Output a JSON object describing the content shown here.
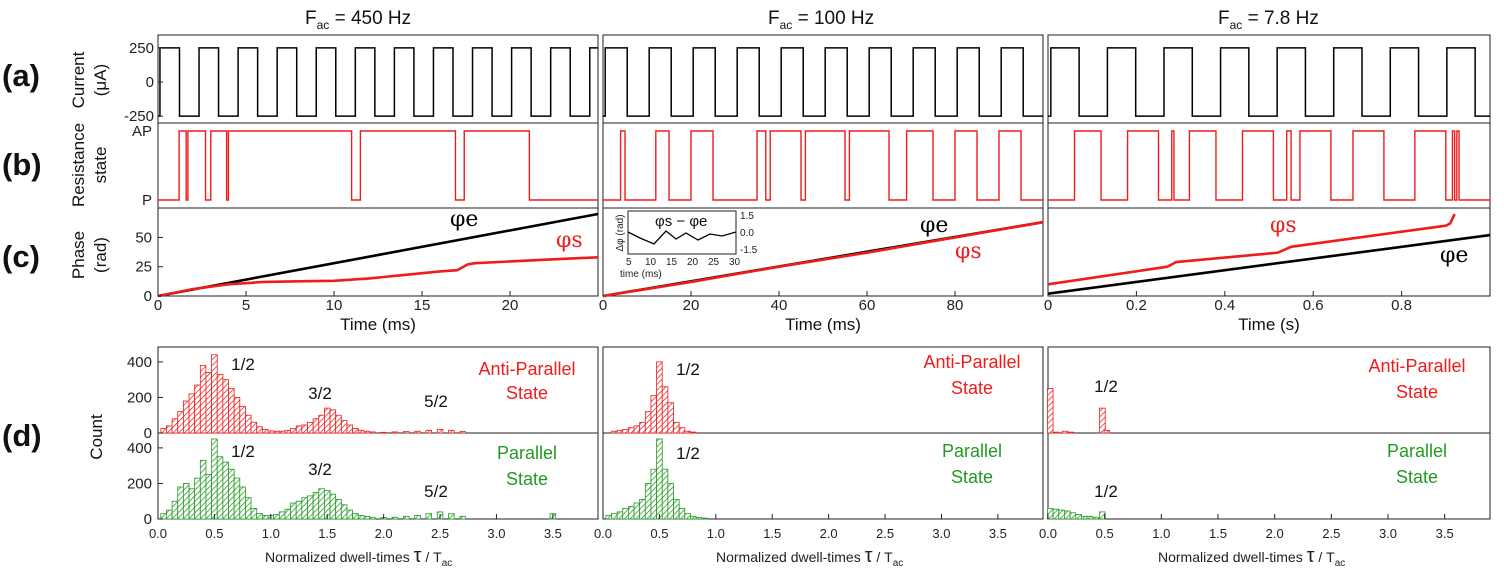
{
  "colors": {
    "current": "#000000",
    "resistance": "#ee1c1c",
    "phase_e": "#000000",
    "phase_s": "#ee1c1c",
    "antiparallel": "#ee1c1c",
    "parallel": "#229922"
  },
  "panel_labels": [
    "(a)",
    "(b)",
    "(c)",
    "(d)"
  ],
  "row_labels": {
    "a": [
      "Current",
      "(μA)"
    ],
    "b": [
      "Resistance",
      "state"
    ],
    "c": [
      "Phase",
      "(rad)"
    ],
    "d": [
      "Count"
    ]
  },
  "columns": [
    {
      "title": "F",
      "title_sub": "ac",
      "title_rest": " = 450 Hz"
    },
    {
      "title": "F",
      "title_sub": "ac",
      "title_rest": " = 100 Hz"
    },
    {
      "title": "F",
      "title_sub": "ac",
      "title_rest": " = 7.8 Hz"
    }
  ],
  "phase_labels": {
    "phi_e": "φe",
    "phi_s": "φs"
  },
  "hist_labels": {
    "ap_line1": "Anti-Parallel",
    "ap_line2": "State",
    "p_line1": "Parallel",
    "p_line2": "State",
    "xlabel_main": "Normalized dwell-times ",
    "xlabel_tau": "τ",
    "xlabel_tail": " / T",
    "xlabel_sub": "ac"
  },
  "inset": {
    "title": "φs − φe",
    "ylabel": "Δφ (rad)",
    "xlabel": "time (ms)",
    "xticks": [
      "5",
      "10",
      "15",
      "20",
      "25",
      "30"
    ],
    "yticks": [
      "1.5",
      "0.0",
      "-1.5"
    ]
  },
  "chart_data": [
    {
      "id": "a-450",
      "type": "line",
      "title": "F_ac = 450 Hz",
      "xlabel": "",
      "ylabel": "Current (μA)",
      "xlim": [
        0,
        25
      ],
      "ylim": [
        -300,
        300
      ],
      "yticks": [
        "250",
        "0",
        "-250"
      ],
      "period": 2.22,
      "amplitude": 250
    },
    {
      "id": "a-100",
      "type": "line",
      "title": "F_ac = 100 Hz",
      "xlim": [
        0,
        100
      ],
      "ylim": [
        -300,
        300
      ],
      "period": 10,
      "amplitude": 250
    },
    {
      "id": "a-7.8",
      "type": "line",
      "title": "F_ac = 7.8 Hz",
      "xlim": [
        0,
        1.0
      ],
      "ylim": [
        -300,
        300
      ],
      "period": 0.128,
      "amplitude": 250
    },
    {
      "id": "b-450",
      "type": "line",
      "ylabel": "Resistance state",
      "yticks": [
        "AP",
        "P"
      ],
      "xlim": [
        0,
        25
      ],
      "state_switch_times": [
        1.2,
        1.6,
        1.7,
        2.7,
        3.0,
        3.9,
        4.0,
        11.0,
        11.5,
        16.9,
        17.4,
        21.1
      ]
    },
    {
      "id": "b-100",
      "type": "line",
      "xlim": [
        0,
        100
      ],
      "state_switch_times": [
        4,
        5,
        12,
        15,
        20,
        25,
        35,
        37,
        38,
        45,
        46,
        55,
        56,
        65,
        69,
        75,
        80,
        85,
        90,
        95
      ]
    },
    {
      "id": "b-7.8",
      "type": "line",
      "xlim": [
        0,
        1.0
      ],
      "state_switch_times": [
        0.06,
        0.12,
        0.18,
        0.25,
        0.28,
        0.285,
        0.32,
        0.38,
        0.44,
        0.51,
        0.54,
        0.55,
        0.57,
        0.64,
        0.69,
        0.76,
        0.83,
        0.9,
        0.915,
        0.92,
        0.925,
        0.93
      ]
    },
    {
      "id": "c-450",
      "type": "line",
      "xlabel": "Time (ms)",
      "ylabel": "Phase (rad)",
      "xlim": [
        0,
        25
      ],
      "ylim": [
        0,
        70
      ],
      "xticks": [
        "0",
        "5",
        "10",
        "15",
        "20"
      ],
      "yticks": [
        "0",
        "25",
        "50"
      ],
      "series": [
        {
          "name": "φe",
          "x": [
            0,
            25
          ],
          "y": [
            0,
            70
          ]
        },
        {
          "name": "φs",
          "x": [
            0,
            2,
            4,
            6,
            8,
            10,
            12,
            14,
            16,
            17,
            17.6,
            18,
            20,
            22,
            25
          ],
          "y": [
            0,
            6,
            10,
            12,
            12.5,
            13,
            15,
            18,
            21,
            22,
            27,
            28,
            29.5,
            31,
            33
          ]
        }
      ]
    },
    {
      "id": "c-100",
      "type": "line",
      "xlabel": "Time (ms)",
      "xlim": [
        0,
        100
      ],
      "ylim": [
        0,
        70
      ],
      "xticks": [
        "0",
        "20",
        "40",
        "60",
        "80"
      ],
      "series": [
        {
          "name": "φe",
          "x": [
            0,
            100
          ],
          "y": [
            0,
            63
          ]
        },
        {
          "name": "φs",
          "x": [
            0,
            20,
            40,
            60,
            80,
            100
          ],
          "y": [
            0,
            12,
            25,
            37,
            50,
            63
          ]
        }
      ]
    },
    {
      "id": "c-7.8",
      "type": "line",
      "xlabel": "Time (s)",
      "xlim": [
        0,
        1.0
      ],
      "ylim": [
        0,
        70
      ],
      "xticks": [
        "0",
        "0.2",
        "0.4",
        "0.6",
        "0.8"
      ],
      "series": [
        {
          "name": "φe",
          "x": [
            0,
            1.0
          ],
          "y": [
            2,
            52
          ]
        },
        {
          "name": "φs",
          "x": [
            0,
            0.27,
            0.29,
            0.52,
            0.55,
            0.9,
            0.91,
            0.92
          ],
          "y": [
            10,
            25,
            29,
            37,
            42,
            60,
            62,
            70
          ]
        }
      ]
    },
    {
      "id": "d-450-ap",
      "type": "bar",
      "xlabel": "Normalized dwell-times τ / T_ac",
      "ylabel": "Count",
      "ylim": [
        0,
        450
      ],
      "xlim": [
        0,
        3.9
      ],
      "yticks": [
        "0",
        "200",
        "400"
      ],
      "annotations": [
        "1/2",
        "3/2",
        "5/2"
      ],
      "x": [
        0.05,
        0.1,
        0.15,
        0.2,
        0.25,
        0.3,
        0.35,
        0.4,
        0.45,
        0.5,
        0.55,
        0.6,
        0.65,
        0.7,
        0.75,
        0.8,
        0.85,
        0.9,
        0.95,
        1.0,
        1.05,
        1.1,
        1.15,
        1.2,
        1.25,
        1.3,
        1.35,
        1.4,
        1.45,
        1.5,
        1.55,
        1.6,
        1.65,
        1.7,
        1.75,
        1.8,
        1.85,
        1.9,
        2.0,
        2.1,
        2.2,
        2.3,
        2.4,
        2.5,
        2.6,
        2.7
      ],
      "values": [
        25,
        40,
        80,
        120,
        180,
        220,
        270,
        380,
        340,
        440,
        330,
        300,
        250,
        200,
        150,
        100,
        60,
        35,
        20,
        12,
        10,
        10,
        15,
        25,
        40,
        45,
        60,
        80,
        100,
        140,
        130,
        100,
        70,
        45,
        25,
        15,
        10,
        6,
        4,
        6,
        8,
        10,
        15,
        20,
        15,
        8
      ]
    },
    {
      "id": "d-450-p",
      "type": "bar",
      "ylim": [
        0,
        450
      ],
      "xlim": [
        0,
        3.9
      ],
      "yticks": [
        "0",
        "200",
        "400"
      ],
      "annotations": [
        "1/2",
        "3/2",
        "5/2"
      ],
      "xticks": [
        "0.0",
        "0.5",
        "1.0",
        "1.5",
        "2.0",
        "2.5",
        "3.0",
        "3.5"
      ],
      "x": [
        0.05,
        0.1,
        0.15,
        0.2,
        0.25,
        0.3,
        0.35,
        0.4,
        0.45,
        0.5,
        0.55,
        0.6,
        0.65,
        0.7,
        0.75,
        0.8,
        0.85,
        0.9,
        0.95,
        1.0,
        1.05,
        1.1,
        1.15,
        1.2,
        1.25,
        1.3,
        1.35,
        1.4,
        1.45,
        1.5,
        1.55,
        1.6,
        1.65,
        1.7,
        1.75,
        1.8,
        1.85,
        1.9,
        2.0,
        2.1,
        2.2,
        2.3,
        2.4,
        2.5,
        2.6,
        2.7,
        3.5
      ],
      "values": [
        30,
        50,
        100,
        180,
        200,
        170,
        230,
        330,
        250,
        450,
        350,
        320,
        280,
        230,
        180,
        120,
        60,
        30,
        20,
        20,
        25,
        40,
        55,
        90,
        100,
        120,
        130,
        150,
        170,
        160,
        140,
        110,
        80,
        50,
        30,
        20,
        15,
        10,
        8,
        10,
        15,
        20,
        30,
        40,
        30,
        15,
        30
      ]
    },
    {
      "id": "d-100-ap",
      "type": "bar",
      "ylim": [
        0,
        450
      ],
      "xlim": [
        0,
        3.9
      ],
      "annotations": [
        "1/2"
      ],
      "x": [
        0.1,
        0.15,
        0.2,
        0.25,
        0.3,
        0.35,
        0.4,
        0.45,
        0.5,
        0.55,
        0.6,
        0.65,
        0.7,
        0.75,
        0.8
      ],
      "values": [
        10,
        15,
        20,
        30,
        40,
        60,
        120,
        210,
        400,
        260,
        170,
        60,
        30,
        10,
        5
      ]
    },
    {
      "id": "d-100-p",
      "type": "bar",
      "ylim": [
        0,
        450
      ],
      "xlim": [
        0,
        3.9
      ],
      "annotations": [
        "1/2"
      ],
      "xticks": [
        "0.0",
        "0.5",
        "1.0",
        "1.5",
        "2.0",
        "2.5",
        "3.0",
        "3.5"
      ],
      "x": [
        0.05,
        0.1,
        0.15,
        0.2,
        0.25,
        0.3,
        0.35,
        0.4,
        0.45,
        0.5,
        0.55,
        0.6,
        0.65,
        0.7,
        0.75,
        0.8,
        0.85,
        0.9
      ],
      "values": [
        20,
        30,
        40,
        60,
        70,
        90,
        110,
        200,
        280,
        450,
        280,
        200,
        110,
        60,
        30,
        15,
        8,
        5
      ]
    },
    {
      "id": "d-7.8-ap",
      "type": "bar",
      "ylim": [
        0,
        450
      ],
      "xlim": [
        0,
        3.9
      ],
      "annotations": [
        "1/2"
      ],
      "x": [
        0.02,
        0.07,
        0.15,
        0.2,
        0.48,
        0.52
      ],
      "values": [
        250,
        5,
        10,
        5,
        140,
        15
      ]
    },
    {
      "id": "d-7.8-p",
      "type": "bar",
      "ylim": [
        0,
        450
      ],
      "xlim": [
        0,
        3.9
      ],
      "annotations": [
        "1/2"
      ],
      "xticks": [
        "0.0",
        "0.5",
        "1.0",
        "1.5",
        "2.0",
        "2.5",
        "3.0",
        "3.5"
      ],
      "x": [
        0.02,
        0.07,
        0.12,
        0.17,
        0.22,
        0.27,
        0.32,
        0.37,
        0.42,
        0.48
      ],
      "values": [
        60,
        55,
        50,
        45,
        35,
        25,
        15,
        15,
        10,
        40
      ]
    }
  ]
}
